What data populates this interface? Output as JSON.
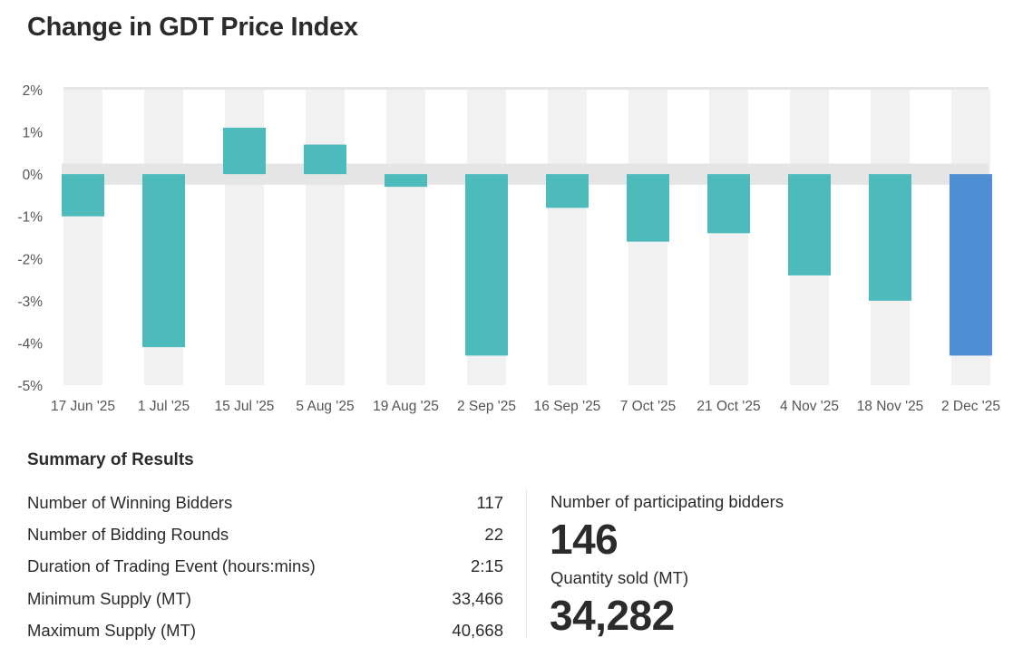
{
  "title": "Change in GDT Price Index",
  "chart_data": {
    "type": "bar",
    "title": "Change in GDT Price Index",
    "categories": [
      "17 Jun '25",
      "1 Jul '25",
      "15 Jul '25",
      "5 Aug '25",
      "19 Aug '25",
      "2 Sep '25",
      "16 Sep '25",
      "7 Oct '25",
      "21 Oct '25",
      "4 Nov '25",
      "18 Nov '25",
      "2 Dec '25"
    ],
    "values": [
      -1.0,
      -4.1,
      1.1,
      0.7,
      -0.3,
      -4.3,
      -0.8,
      -1.6,
      -1.4,
      -2.4,
      -3.0,
      -4.3
    ],
    "yticks": [
      "2%",
      "1%",
      "0%",
      "-1%",
      "-2%",
      "-3%",
      "-4%",
      "-5%"
    ],
    "ylim": [
      -5,
      2
    ],
    "unit": "%",
    "colors": {
      "default": "#4dbbbb",
      "latest": "#4f8fd4",
      "stripe": "#f1f1f1",
      "zero_band": "#e5e5e5"
    },
    "grid": false,
    "xlabel": "",
    "ylabel": ""
  },
  "summary": {
    "title": "Summary of Results",
    "rows": [
      {
        "label": "Number of Winning Bidders",
        "value": "117"
      },
      {
        "label": "Number of Bidding Rounds",
        "value": "22"
      },
      {
        "label": "Duration of Trading Event (hours:mins)",
        "value": "2:15"
      },
      {
        "label": "Minimum Supply (MT)",
        "value": "33,466"
      },
      {
        "label": "Maximum Supply (MT)",
        "value": "40,668"
      }
    ],
    "participating_label": "Number of participating bidders",
    "participating_value": "146",
    "quantity_label": "Quantity sold (MT)",
    "quantity_value": "34,282"
  }
}
